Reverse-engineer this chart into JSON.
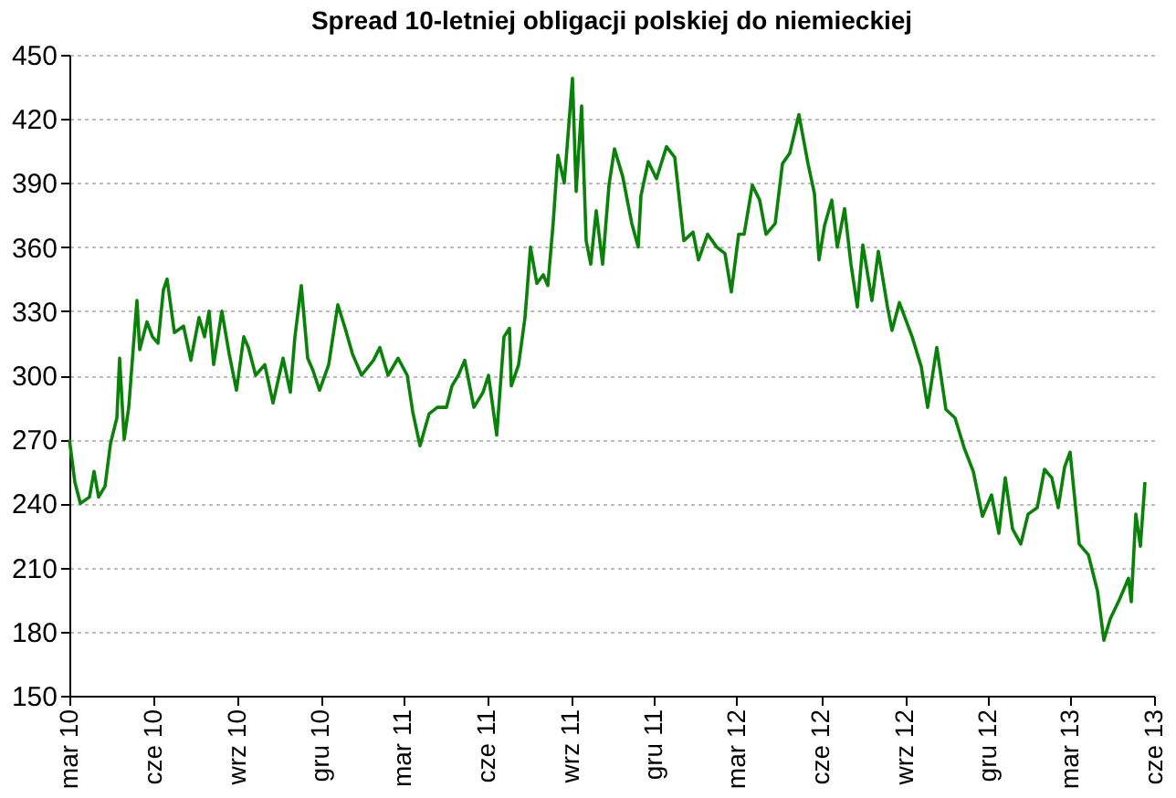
{
  "chart_data": {
    "type": "line",
    "title": "Spread 10-letniej obligacji polskiej do niemieckiej",
    "x": [
      "2010-03-01",
      "2010-03-07",
      "2010-03-13",
      "2010-03-23",
      "2010-03-28",
      "2010-04-02",
      "2010-04-09",
      "2010-04-15",
      "2010-04-22",
      "2010-04-25",
      "2010-04-30",
      "2010-05-05",
      "2010-05-10",
      "2010-05-14",
      "2010-05-17",
      "2010-05-25",
      "2010-05-31",
      "2010-06-06",
      "2010-06-12",
      "2010-06-16",
      "2010-06-24",
      "2010-07-04",
      "2010-07-12",
      "2010-07-21",
      "2010-07-27",
      "2010-08-01",
      "2010-08-06",
      "2010-08-15",
      "2010-08-23",
      "2010-08-31",
      "2010-09-08",
      "2010-09-13",
      "2010-09-21",
      "2010-10-01",
      "2010-10-10",
      "2010-10-21",
      "2010-10-29",
      "2010-11-03",
      "2010-11-10",
      "2010-11-17",
      "2010-11-23",
      "2010-11-30",
      "2010-12-10",
      "2010-12-20",
      "2010-12-28",
      "2011-01-05",
      "2011-01-15",
      "2011-01-28",
      "2011-02-04",
      "2011-02-13",
      "2011-02-24",
      "2011-03-06",
      "2011-03-12",
      "2011-03-20",
      "2011-03-30",
      "2011-04-08",
      "2011-04-18",
      "2011-04-24",
      "2011-05-01",
      "2011-05-08",
      "2011-05-18",
      "2011-05-28",
      "2011-06-03",
      "2011-06-12",
      "2011-06-20",
      "2011-06-26",
      "2011-06-28",
      "2011-07-06",
      "2011-07-13",
      "2011-07-19",
      "2011-07-26",
      "2011-08-02",
      "2011-08-07",
      "2011-08-13",
      "2011-08-18",
      "2011-08-25",
      "2011-09-03",
      "2011-09-07",
      "2011-09-13",
      "2011-09-18",
      "2011-09-23",
      "2011-09-29",
      "2011-10-06",
      "2011-10-13",
      "2011-10-19",
      "2011-10-28",
      "2011-11-07",
      "2011-11-14",
      "2011-11-17",
      "2011-11-25",
      "2011-12-04",
      "2011-12-15",
      "2011-12-24",
      "2012-01-03",
      "2012-01-13",
      "2012-01-19",
      "2012-01-29",
      "2012-02-08",
      "2012-02-17",
      "2012-02-24",
      "2012-03-03",
      "2012-03-09",
      "2012-03-18",
      "2012-03-26",
      "2012-04-02",
      "2012-04-12",
      "2012-04-20",
      "2012-04-28",
      "2012-05-08",
      "2012-05-18",
      "2012-05-25",
      "2012-05-30",
      "2012-06-05",
      "2012-06-13",
      "2012-06-19",
      "2012-06-27",
      "2012-07-04",
      "2012-07-11",
      "2012-07-17",
      "2012-07-27",
      "2012-08-03",
      "2012-08-13",
      "2012-08-18",
      "2012-08-26",
      "2012-09-09",
      "2012-09-19",
      "2012-09-26",
      "2012-10-06",
      "2012-10-16",
      "2012-10-26",
      "2012-11-05",
      "2012-11-15",
      "2012-11-25",
      "2012-12-05",
      "2012-12-13",
      "2012-12-20",
      "2012-12-28",
      "2013-01-06",
      "2013-01-14",
      "2013-01-24",
      "2013-02-01",
      "2013-02-09",
      "2013-02-16",
      "2013-02-23",
      "2013-03-01",
      "2013-03-11",
      "2013-03-21",
      "2013-03-31",
      "2013-04-07",
      "2013-04-14",
      "2013-04-24",
      "2013-05-04",
      "2013-05-07",
      "2013-05-12",
      "2013-05-17",
      "2013-05-22"
    ],
    "series": [
      {
        "color": "#0a820a",
        "values": [
          270,
          250,
          240,
          243,
          255,
          243,
          248,
          268,
          280,
          308,
          270,
          285,
          313,
          335,
          312,
          325,
          318,
          315,
          340,
          345,
          320,
          323,
          307,
          327,
          318,
          330,
          305,
          330,
          310,
          293,
          318,
          313,
          300,
          305,
          287,
          308,
          292,
          318,
          342,
          308,
          302,
          293,
          305,
          333,
          322,
          310,
          300,
          307,
          313,
          300,
          308,
          300,
          283,
          267,
          282,
          285,
          285,
          295,
          300,
          307,
          285,
          292,
          300,
          272,
          318,
          322,
          295,
          305,
          327,
          360,
          343,
          347,
          342,
          372,
          403,
          390,
          439,
          386,
          426,
          363,
          352,
          377,
          352,
          389,
          406,
          393,
          371,
          360,
          384,
          400,
          392,
          407,
          402,
          363,
          367,
          354,
          366,
          360,
          357,
          339,
          366,
          366,
          389,
          382,
          366,
          371,
          399,
          404,
          422,
          399,
          385,
          354,
          370,
          382,
          360,
          378,
          352,
          332,
          361,
          335,
          358,
          332,
          321,
          334,
          318,
          304,
          285,
          313,
          284,
          280,
          266,
          255,
          234,
          244,
          226,
          252,
          228,
          221,
          235,
          238,
          256,
          252,
          238,
          257,
          264,
          221,
          216,
          199,
          176,
          186,
          195,
          205,
          194,
          235,
          220,
          250
        ]
      }
    ],
    "xlim": [
      "2010-03-01",
      "2013-06-01"
    ],
    "xticks": [
      {
        "value": "2010-03-01",
        "label": "mar 10"
      },
      {
        "value": "2010-06-01",
        "label": "cze 10"
      },
      {
        "value": "2010-09-01",
        "label": "wrz 10"
      },
      {
        "value": "2010-12-01",
        "label": "gru 10"
      },
      {
        "value": "2011-03-01",
        "label": "mar 11"
      },
      {
        "value": "2011-06-01",
        "label": "cze 11"
      },
      {
        "value": "2011-09-01",
        "label": "wrz 11"
      },
      {
        "value": "2011-12-01",
        "label": "gru 11"
      },
      {
        "value": "2012-03-01",
        "label": "mar 12"
      },
      {
        "value": "2012-06-01",
        "label": "cze 12"
      },
      {
        "value": "2012-09-01",
        "label": "wrz 12"
      },
      {
        "value": "2012-12-01",
        "label": "gru 12"
      },
      {
        "value": "2013-03-01",
        "label": "mar 13"
      },
      {
        "value": "2013-06-01",
        "label": "cze 13"
      }
    ],
    "ylim": [
      150,
      450
    ],
    "yticks": [
      150,
      180,
      210,
      240,
      270,
      300,
      330,
      360,
      390,
      420,
      450
    ],
    "grid": "y",
    "marker": "none",
    "line_style": "solid"
  }
}
